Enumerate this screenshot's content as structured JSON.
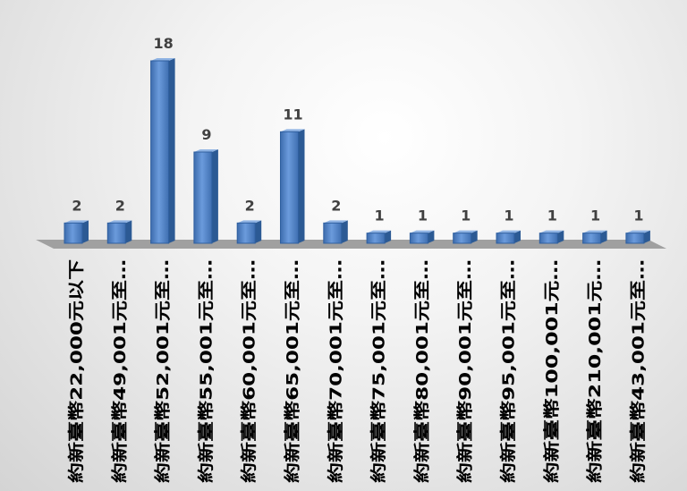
{
  "chart_data": {
    "type": "bar",
    "categories": [
      "約新臺幣22,000元以下",
      "約新臺幣49,001元至…",
      "約新臺幣52,001元至…",
      "約新臺幣55,001元至…",
      "約新臺幣60,001元至…",
      "約新臺幣65,001元至…",
      "約新臺幣70,001元至…",
      "約新臺幣75,001元至…",
      "約新臺幣80,001元至…",
      "約新臺幣90,001元至…",
      "約新臺幣95,001元至…",
      "約新臺幣100,001元…",
      "約新臺幣210,001元…",
      "約新臺幣43,001元至…"
    ],
    "values": [
      2,
      2,
      18,
      9,
      2,
      11,
      2,
      1,
      1,
      1,
      1,
      1,
      1,
      1
    ],
    "ylim": [
      0,
      18
    ],
    "data_labels": true,
    "grid": false,
    "legend": "none",
    "colors": {
      "bar_front": "#4f81bd",
      "bar_side": "#2c5a94",
      "bar_top": "#8fb3e3",
      "floor": "#9a9a9a"
    }
  }
}
